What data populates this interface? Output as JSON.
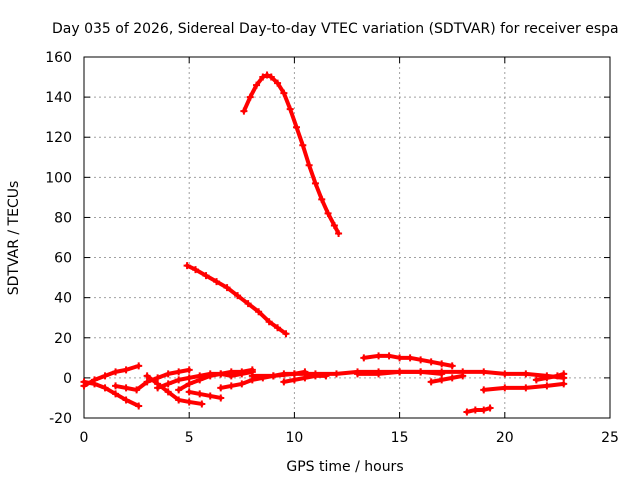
{
  "chart_data": {
    "type": "scatter",
    "title": "Day 035 of 2026, Sidereal Day-to-day VTEC variation (SDTVAR) for receiver espa",
    "xlabel": "GPS time / hours",
    "ylabel": "SDTVAR / TECUs",
    "xlim": [
      0,
      25
    ],
    "ylim": [
      -20,
      160
    ],
    "xticks": [
      "0",
      "5",
      "10",
      "15",
      "20",
      "25"
    ],
    "yticks": [
      "-20",
      "0",
      "20",
      "40",
      "60",
      "80",
      "100",
      "120",
      "140",
      "160"
    ],
    "grid": true,
    "legend": "none",
    "series_color": "#ff0000",
    "series": [
      {
        "x": [
          7.6,
          7.9,
          8.2,
          8.5,
          8.7,
          8.9,
          9.2,
          9.5,
          9.8,
          10.1,
          10.4,
          10.7,
          11.0,
          11.3,
          11.6,
          11.9,
          12.1
        ],
        "y": [
          133,
          140,
          146,
          150,
          151,
          150,
          147,
          142,
          134,
          125,
          116,
          106,
          97,
          89,
          82,
          76,
          72
        ]
      },
      {
        "x": [
          4.9,
          5.3,
          5.8,
          6.3,
          6.8,
          7.3,
          7.8,
          8.3,
          8.8,
          9.2,
          9.6
        ],
        "y": [
          56,
          54,
          51,
          48,
          45,
          41,
          37,
          33,
          28,
          25,
          22
        ]
      },
      {
        "x": [
          0.0,
          0.5,
          1.0,
          1.5,
          2.0,
          2.6
        ],
        "y": [
          -4,
          -1,
          1,
          3,
          4,
          6
        ]
      },
      {
        "x": [
          0.0,
          0.5,
          1.0,
          1.5,
          2.0,
          2.6
        ],
        "y": [
          -2,
          -3,
          -5,
          -8,
          -11,
          -14
        ]
      },
      {
        "x": [
          1.5,
          2.0,
          2.5,
          3.0,
          3.5,
          4.0,
          4.5,
          5.0
        ],
        "y": [
          -4,
          -5,
          -6,
          -2,
          0,
          2,
          3,
          4
        ]
      },
      {
        "x": [
          3.0,
          3.5,
          4.0,
          4.5,
          5.0,
          5.6
        ],
        "y": [
          1,
          -3,
          -7,
          -11,
          -12,
          -13
        ]
      },
      {
        "x": [
          3.5,
          4.0,
          4.5,
          5.0,
          5.5,
          6.0,
          6.5,
          7.0,
          7.5,
          8.0
        ],
        "y": [
          -5,
          -3,
          -1,
          0,
          1,
          2,
          2,
          3,
          3,
          4
        ]
      },
      {
        "x": [
          4.5,
          5.0,
          5.5,
          6.0,
          6.5,
          7.0,
          7.5,
          8.0
        ],
        "y": [
          -6,
          -3,
          -1,
          1,
          2,
          1,
          2,
          3
        ]
      },
      {
        "x": [
          5.0,
          5.5,
          6.0,
          6.5
        ],
        "y": [
          -7,
          -8,
          -9,
          -10
        ]
      },
      {
        "x": [
          6.5,
          7.0,
          7.5,
          8.0,
          8.5,
          9.0,
          9.5,
          10.0,
          10.5
        ],
        "y": [
          -5,
          -4,
          -3,
          -1,
          0,
          1,
          2,
          2,
          3
        ]
      },
      {
        "x": [
          8.0,
          9.0,
          10.0,
          11.0,
          12.0,
          13.0,
          14.0,
          15.0,
          16.0,
          17.0
        ],
        "y": [
          1,
          1,
          2,
          2,
          2,
          3,
          3,
          3,
          3,
          2
        ]
      },
      {
        "x": [
          9.5,
          10.0,
          10.5,
          11.0,
          11.5
        ],
        "y": [
          -2,
          -1,
          0,
          1,
          1
        ]
      },
      {
        "x": [
          13.3,
          14.0,
          14.5,
          15.0,
          15.5,
          16.0,
          16.5,
          17.0,
          17.5
        ],
        "y": [
          10,
          11,
          11,
          10,
          10,
          9,
          8,
          7,
          6
        ]
      },
      {
        "x": [
          13.0,
          14.0,
          15.0,
          16.0,
          17.0,
          18.0,
          19.0,
          20.0,
          21.0,
          22.0,
          22.8
        ],
        "y": [
          2,
          2,
          3,
          3,
          3,
          3,
          3,
          2,
          2,
          1,
          0
        ]
      },
      {
        "x": [
          16.5,
          17.0,
          17.5,
          18.0
        ],
        "y": [
          -2,
          -1,
          0,
          1
        ]
      },
      {
        "x": [
          19.0,
          20.0,
          21.0,
          22.0,
          22.8
        ],
        "y": [
          -6,
          -5,
          -5,
          -4,
          -3
        ]
      },
      {
        "x": [
          21.5,
          22.0,
          22.5,
          22.8
        ],
        "y": [
          -1,
          0,
          1,
          2
        ]
      },
      {
        "x": [
          18.2,
          18.6,
          19.0,
          19.3
        ],
        "y": [
          -17,
          -16,
          -16,
          -15
        ]
      }
    ]
  }
}
